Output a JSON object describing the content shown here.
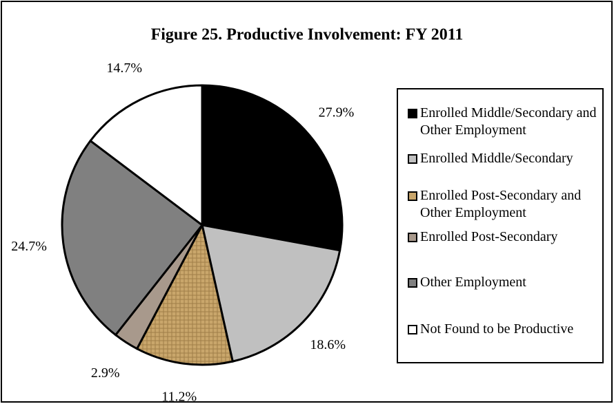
{
  "chart_data": {
    "type": "pie",
    "title": "Figure 25.  Productive Involvement:  FY 2011",
    "categories": [
      "Enrolled Middle/Secondary and Other Employment",
      "Enrolled Middle/Secondary",
      "Enrolled Post-Secondary and Other Employment",
      "Enrolled Post-Secondary",
      "Other Employment",
      "Not Found to be Productive"
    ],
    "values": [
      27.9,
      18.6,
      11.2,
      2.9,
      24.7,
      14.7
    ],
    "value_labels": [
      "27.9%",
      "18.6%",
      "11.2%",
      "2.9%",
      "24.7%",
      "14.7%"
    ],
    "colors": [
      "#000000",
      "#c0c0c0",
      "#c9a66b",
      "#a8998c",
      "#808080",
      "#ffffff"
    ],
    "legend": "right"
  }
}
